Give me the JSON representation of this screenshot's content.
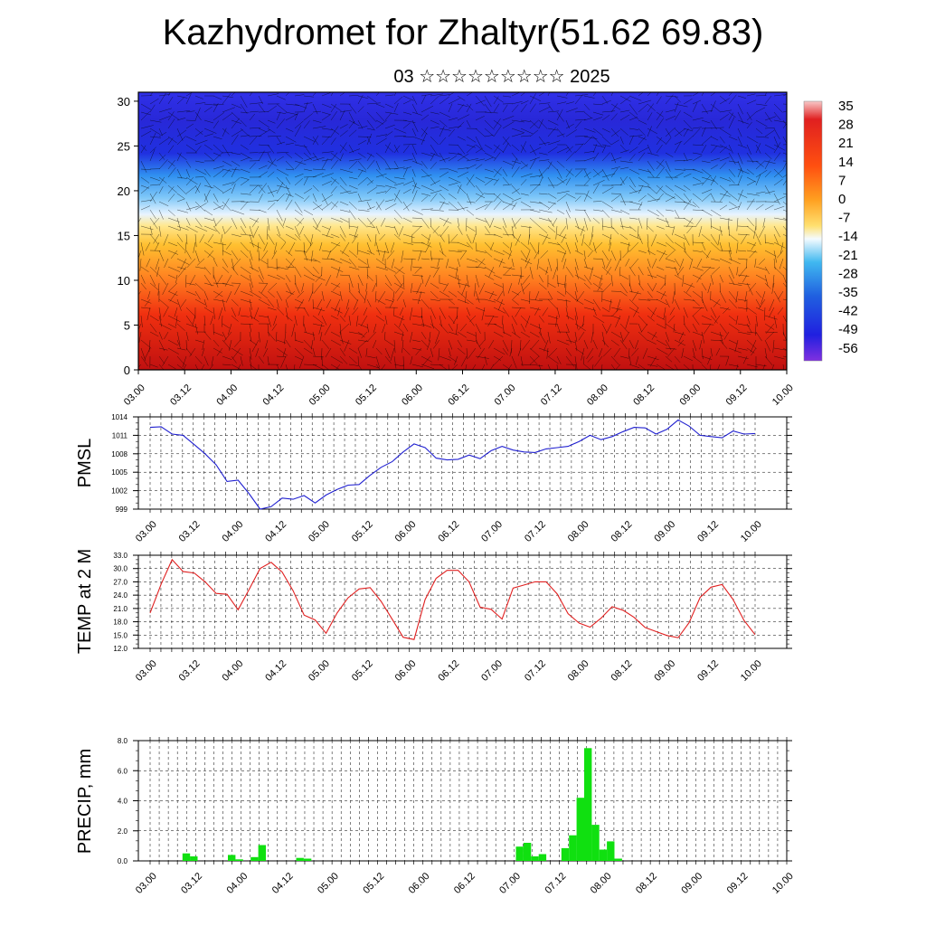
{
  "title": "Kazhydromet for Zhaltyr(51.62 69.83)",
  "subtitle": "03 ☆☆☆☆☆☆☆☆☆ 2025",
  "time_labels": [
    "03.00",
    "03.12",
    "04.00",
    "04.12",
    "05.00",
    "05.12",
    "06.00",
    "06.12",
    "07.00",
    "07.12",
    "08.00",
    "08.12",
    "09.00",
    "09.12",
    "10.00"
  ],
  "chart_data": [
    {
      "type": "heatmap",
      "name": "cross-section",
      "y_ticks": [
        "0",
        "5",
        "10",
        "15",
        "20",
        "25",
        "30"
      ],
      "ylim": [
        0,
        31
      ],
      "colorbar_labels": [
        "35",
        "28",
        "21",
        "14",
        "7",
        "0",
        "-7",
        "-14",
        "-21",
        "-28",
        "-35",
        "-42",
        "-49",
        "-56"
      ],
      "colors": [
        "#f4c0c0",
        "#e02020",
        "#ff6020",
        "#ffb020",
        "#ffe060",
        "#f0f8ff",
        "#40b0f0",
        "#2020e0",
        "#8020e0"
      ]
    },
    {
      "type": "line",
      "ylabel": "PMSL",
      "y_ticks": [
        "1014",
        "1011",
        "1008",
        "1005",
        "1002",
        "999"
      ],
      "ylim": [
        999,
        1014
      ],
      "color": "#2020d0",
      "values": [
        1012.3,
        1012.4,
        1011.2,
        1011.0,
        1009.5,
        1008.0,
        1006.2,
        1003.5,
        1003.7,
        1001.5,
        999.0,
        999.4,
        1000.8,
        1000.6,
        1001.2,
        1000.0,
        1001.3,
        1002.2,
        1002.9,
        1003.0,
        1004.5,
        1005.8,
        1006.7,
        1008.3,
        1009.6,
        1009.0,
        1007.3,
        1007.0,
        1007.1,
        1007.8,
        1007.2,
        1008.5,
        1009.2,
        1008.6,
        1008.3,
        1008.2,
        1008.8,
        1009.0,
        1009.2,
        1010.0,
        1011.0,
        1010.3,
        1010.8,
        1011.6,
        1012.3,
        1012.2,
        1011.2,
        1012.0,
        1013.5,
        1012.5,
        1011.0,
        1010.8,
        1010.6,
        1011.7,
        1011.2,
        1011.3
      ]
    },
    {
      "type": "line",
      "ylabel": "TEMP at 2 M",
      "y_ticks": [
        "33.0",
        "30.0",
        "27.0",
        "24.0",
        "21.0",
        "18.0",
        "15.0",
        "12.0"
      ],
      "ylim": [
        12,
        33
      ],
      "color": "#e02020",
      "values": [
        20.0,
        26.5,
        32.0,
        29.3,
        29.0,
        27.0,
        24.4,
        24.2,
        20.7,
        25.3,
        30.0,
        31.4,
        29.2,
        25.0,
        19.5,
        18.4,
        15.4,
        20.0,
        23.4,
        25.4,
        25.7,
        22.6,
        18.6,
        14.5,
        14.0,
        23.0,
        27.8,
        29.6,
        29.6,
        27.0,
        21.3,
        20.8,
        18.6,
        25.6,
        26.3,
        27.0,
        27.0,
        24.3,
        19.8,
        17.7,
        16.8,
        18.8,
        21.4,
        20.6,
        19.0,
        16.7,
        15.8,
        14.9,
        14.4,
        17.8,
        23.5,
        25.8,
        26.4,
        23.0,
        18.3,
        15.1
      ]
    },
    {
      "type": "bar",
      "ylabel": "PRECIP, mm",
      "y_ticks": [
        "8.0",
        "6.0",
        "4.0",
        "2.0",
        "0.0"
      ],
      "ylim": [
        0,
        8
      ],
      "color": "#10e010",
      "values": [
        0,
        0,
        0.5,
        0.3,
        0,
        0,
        0,
        0,
        0.4,
        0.1,
        0,
        0.25,
        1.05,
        0,
        0,
        0,
        0,
        0.2,
        0.15,
        0,
        0,
        0,
        0,
        0,
        0,
        0,
        0,
        0,
        0,
        0,
        0,
        0,
        0,
        0,
        0,
        0,
        0,
        0,
        0,
        0,
        0,
        0,
        0,
        0,
        0,
        0,
        0.95,
        1.2,
        0.3,
        0.45,
        0,
        0,
        0.85,
        1.7,
        4.2,
        7.5,
        2.4,
        0.75,
        1.3,
        0.15,
        0,
        0,
        0,
        0,
        0,
        0,
        0,
        0,
        0,
        0
      ]
    }
  ]
}
